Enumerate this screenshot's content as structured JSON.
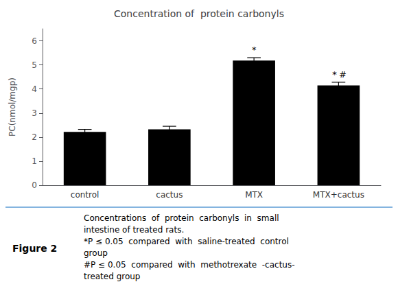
{
  "chart_data": {
    "type": "bar",
    "title": "Concentration of  protein carbonyls",
    "categories": [
      "control",
      "cactus",
      "MTX",
      "MTX+cactus"
    ],
    "values": [
      2.22,
      2.32,
      5.18,
      4.15
    ],
    "errors": [
      0.1,
      0.13,
      0.12,
      0.13
    ],
    "color": "#000000",
    "ylabel": "PC(nmol/mgp)",
    "ylim": [
      0,
      6.5
    ],
    "yticks": [
      0,
      1,
      2,
      3,
      4,
      5,
      6
    ],
    "grid": false,
    "annotations": [
      {
        "category": "MTX",
        "text": "*"
      },
      {
        "category": "MTX+cactus",
        "text": "*"
      },
      {
        "category": "MTX+cactus",
        "text": "#"
      }
    ],
    "figure_label": "Figure 2",
    "caption": [
      "Concentrations  of  protein  carbonyls  in  small",
      "intestine of treated rats.",
      "*P ≤ 0.05  compared  with  saline-treated  control",
      "group",
      "#P ≤ 0.05  compared  with  methotrexate  -cactus-",
      "treated group"
    ]
  }
}
